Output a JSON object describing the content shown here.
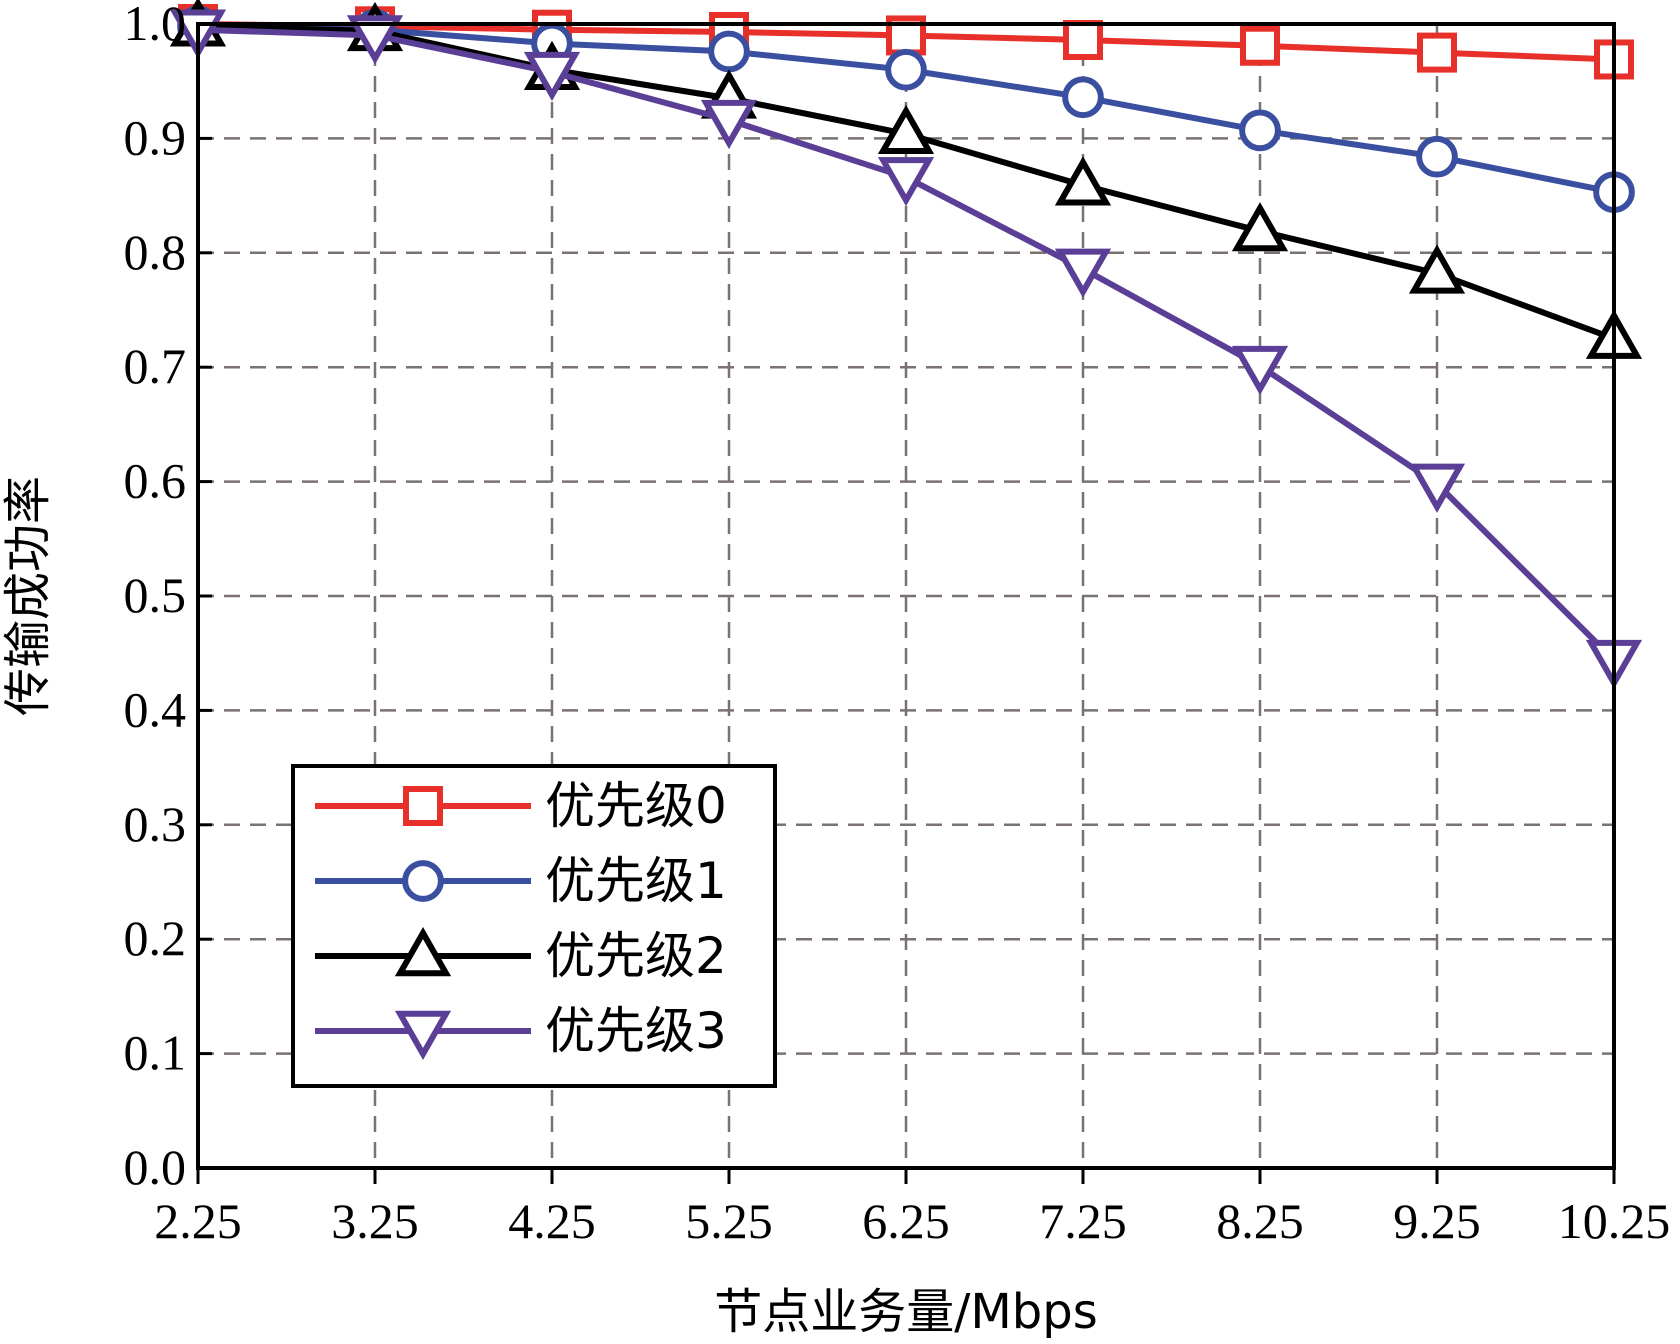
{
  "chart_data": {
    "type": "line",
    "title": "",
    "xlabel": "节点业务量/Mbps",
    "ylabel": "传输成功率",
    "x": [
      2.25,
      3.25,
      4.25,
      5.25,
      6.25,
      7.25,
      8.25,
      9.25,
      10.25
    ],
    "x_tick_labels": [
      "2.25",
      "3.25",
      "4.25",
      "5.25",
      "6.25",
      "7.25",
      "8.25",
      "9.25",
      "10.25"
    ],
    "xlim": [
      2.25,
      10.25
    ],
    "ylim": [
      0.0,
      1.0
    ],
    "y_ticks": [
      0.0,
      0.1,
      0.2,
      0.3,
      0.4,
      0.5,
      0.6,
      0.7,
      0.8,
      0.9,
      1.0
    ],
    "y_tick_labels": [
      "0.0",
      "0.1",
      "0.2",
      "0.3",
      "0.4",
      "0.5",
      "0.6",
      "0.7",
      "0.8",
      "0.9",
      "1.0"
    ],
    "grid": true,
    "legend_position": "bottom-left",
    "series": [
      {
        "name": "优先级0",
        "marker": "square",
        "color": "#e8302a",
        "values": [
          1.0,
          0.998,
          0.995,
          0.993,
          0.99,
          0.986,
          0.981,
          0.975,
          0.969
        ]
      },
      {
        "name": "优先级1",
        "marker": "circle",
        "color": "#3a4fa0",
        "values": [
          0.998,
          0.995,
          0.983,
          0.976,
          0.96,
          0.936,
          0.907,
          0.884,
          0.853
        ]
      },
      {
        "name": "优先级2",
        "marker": "triangle-up",
        "color": "#000000",
        "values": [
          0.998,
          0.994,
          0.96,
          0.935,
          0.904,
          0.859,
          0.819,
          0.782,
          0.725
        ]
      },
      {
        "name": "优先级3",
        "marker": "triangle-down",
        "color": "#5b3f96",
        "values": [
          0.995,
          0.99,
          0.958,
          0.916,
          0.866,
          0.786,
          0.701,
          0.598,
          0.444
        ]
      }
    ]
  }
}
